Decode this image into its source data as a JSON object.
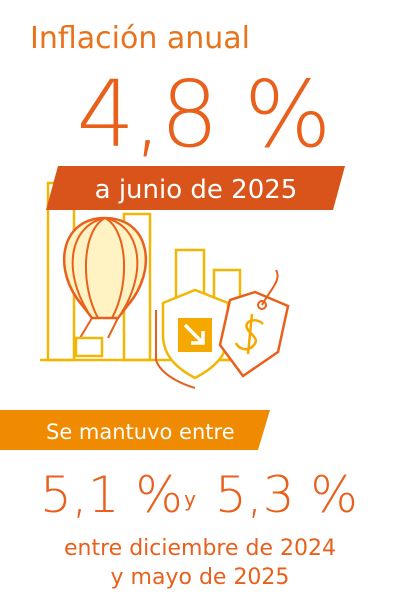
{
  "header": {
    "title": "Inflación anual",
    "value": "4,8 %",
    "date": "a junio de 2025"
  },
  "range": {
    "label": "Se mantuvo entre",
    "low": "5,1 %",
    "connector": "y",
    "high": "5,3 %",
    "period_line1": "entre diciembre de 2024",
    "period_line2": "y mayo de 2025"
  }
}
